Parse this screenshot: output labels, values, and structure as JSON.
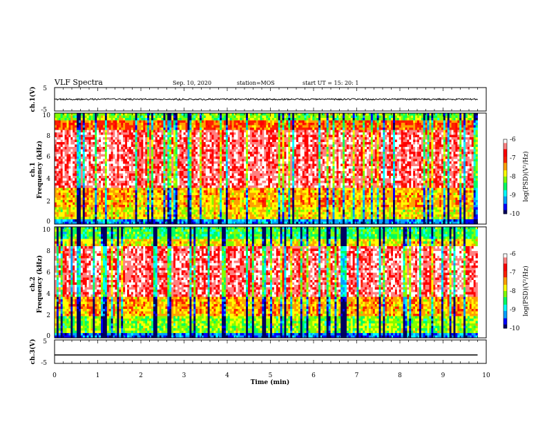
{
  "header": {
    "title": "VLF Spectra",
    "date": "Sep. 10, 2020",
    "station": "station=MOS",
    "start": "start  UT =   15: 20: 1"
  },
  "colors": {
    "scale": [
      "#000060",
      "#0000ff",
      "#00a0ff",
      "#00ffff",
      "#00ff60",
      "#80ff00",
      "#ffff00",
      "#ffa000",
      "#ff2000",
      "#ff0000",
      "#ff8080",
      "#ffffff"
    ]
  },
  "chart_data": [
    {
      "type": "line",
      "ylabel": "ch.1(V)",
      "ylim": [
        -5,
        5
      ],
      "yticks": [
        "5",
        "-5"
      ],
      "series": [
        {
          "x": [
            0,
            9.8
          ],
          "y": [
            0,
            0
          ]
        }
      ]
    },
    {
      "type": "heatmap",
      "ylabel_1": "ch.1",
      "ylabel_2": "Frequency  (kHz)",
      "ylim": [
        0,
        10
      ],
      "yticks": [
        "0",
        "2",
        "4",
        "6",
        "8",
        "10"
      ],
      "x_extent": [
        0,
        9.8
      ],
      "colorbar": {
        "label": "log(PSD)(V²/Hz)",
        "range": [
          -10,
          -6
        ],
        "ticks": [
          "-6",
          "-7",
          "-8",
          "-9",
          "-10"
        ]
      }
    },
    {
      "type": "heatmap",
      "ylabel_1": "ch.2",
      "ylabel_2": "Frequency  (kHz)",
      "ylim": [
        0,
        10
      ],
      "yticks": [
        "0",
        "2",
        "4",
        "6",
        "8",
        "10"
      ],
      "x_extent": [
        0,
        9.8
      ],
      "colorbar": {
        "label": "log(PSD)(V²/Hz)",
        "range": [
          -10,
          -6
        ],
        "ticks": [
          "-6",
          "-7",
          "-8",
          "-9",
          "-10"
        ]
      }
    },
    {
      "type": "line",
      "ylabel": "ch.3(V)",
      "ylim": [
        -5,
        5
      ],
      "yticks": [
        "5",
        "-5"
      ],
      "series": [
        {
          "x": [
            0,
            9.8
          ],
          "y": [
            -1.4,
            -1.4
          ]
        }
      ]
    }
  ],
  "xaxis": {
    "label": "Time  (min)",
    "xlim": [
      0,
      10
    ],
    "ticks": [
      "0",
      "1",
      "2",
      "3",
      "4",
      "5",
      "6",
      "7",
      "8",
      "9",
      "10"
    ]
  }
}
